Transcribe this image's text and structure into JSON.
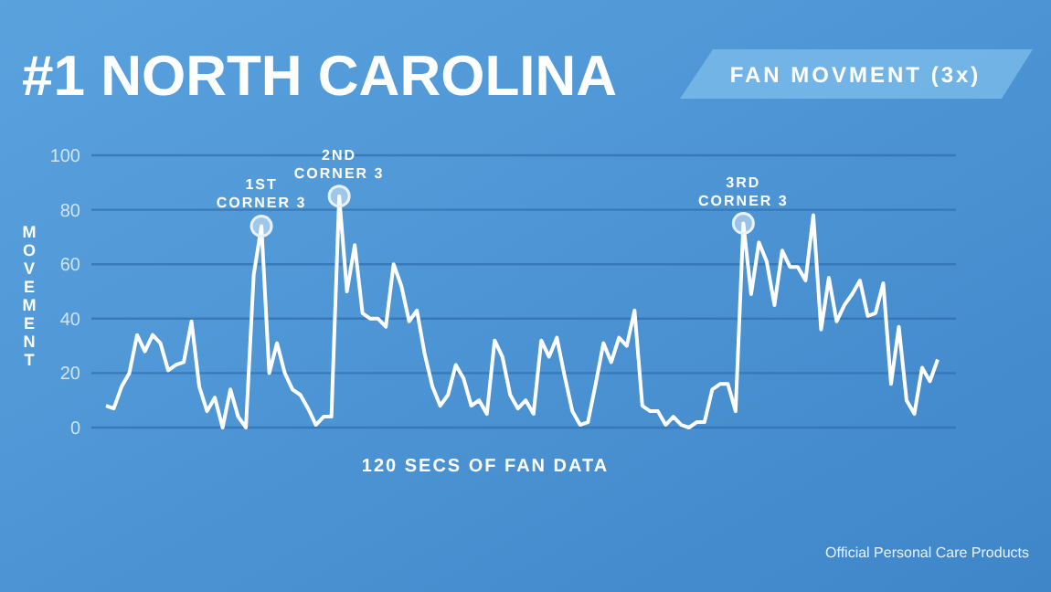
{
  "chart_data": {
    "type": "line",
    "title": "#1 NORTH CAROLINA",
    "subtitle": "FAN MOVMENT (3x)",
    "xlabel": "120 SECS OF FAN DATA",
    "ylabel": "MOVEMENT",
    "categories": [
      null,
      null,
      null,
      null,
      null,
      null,
      null,
      null,
      null,
      null,
      null,
      null,
      null,
      null,
      null,
      null,
      null,
      null,
      null,
      null,
      null,
      null,
      null,
      null,
      null,
      null,
      null,
      null,
      null,
      null,
      null,
      null,
      null,
      null,
      null,
      null,
      null,
      null,
      null,
      null,
      null,
      null,
      null,
      null,
      null,
      null,
      null,
      null,
      null,
      null,
      null,
      null,
      null,
      null,
      null,
      null,
      null,
      null,
      null,
      null,
      null,
      null,
      null,
      null,
      null,
      null,
      null,
      null,
      null,
      null,
      null,
      null,
      null,
      null,
      null,
      null,
      null,
      null,
      null,
      null,
      null,
      null,
      null,
      null,
      null,
      null,
      null,
      null,
      null,
      null,
      null,
      null,
      null,
      null,
      null,
      null,
      null,
      null,
      null,
      null,
      null,
      null,
      null,
      null,
      null,
      null,
      null,
      null
    ],
    "series": [
      {
        "color": "#ffffff",
        "values": [
          8,
          7,
          15,
          20,
          34,
          28,
          34,
          31,
          21,
          23,
          24,
          39,
          15,
          6,
          11,
          0,
          14,
          4,
          0,
          56,
          74,
          20,
          31,
          20,
          14,
          12,
          7,
          1,
          4,
          4,
          85,
          50,
          67,
          42,
          40,
          40,
          37,
          60,
          52,
          39,
          43,
          27,
          15,
          8,
          12,
          23,
          18,
          8,
          10,
          5,
          32,
          26,
          12,
          7,
          10,
          5,
          32,
          26,
          33,
          19,
          6,
          1,
          2,
          16,
          31,
          24,
          33,
          30,
          43,
          8,
          6,
          6,
          1,
          4,
          1,
          0,
          2,
          2,
          14,
          16,
          16,
          6,
          75,
          49,
          68,
          61,
          45,
          65,
          59,
          59,
          54,
          78,
          36,
          55,
          39,
          45,
          49,
          54,
          41,
          42,
          53,
          16,
          37,
          10,
          5,
          22,
          17,
          25
        ]
      }
    ],
    "ylim": [
      0,
      100
    ],
    "yticks": [
      0,
      20,
      40,
      60,
      80,
      100
    ],
    "grid": "y",
    "tick_labels": "y",
    "marker": "none",
    "line_style": "solid",
    "annotations": [
      {
        "text": "1ST\nCORNER 3",
        "y": 74
      },
      {
        "text": "2ND\nCORNER 3",
        "y": 85
      },
      {
        "text": "3RD\nCORNER 3",
        "y": 75
      },
      "Official Personal Care Products"
    ]
  }
}
